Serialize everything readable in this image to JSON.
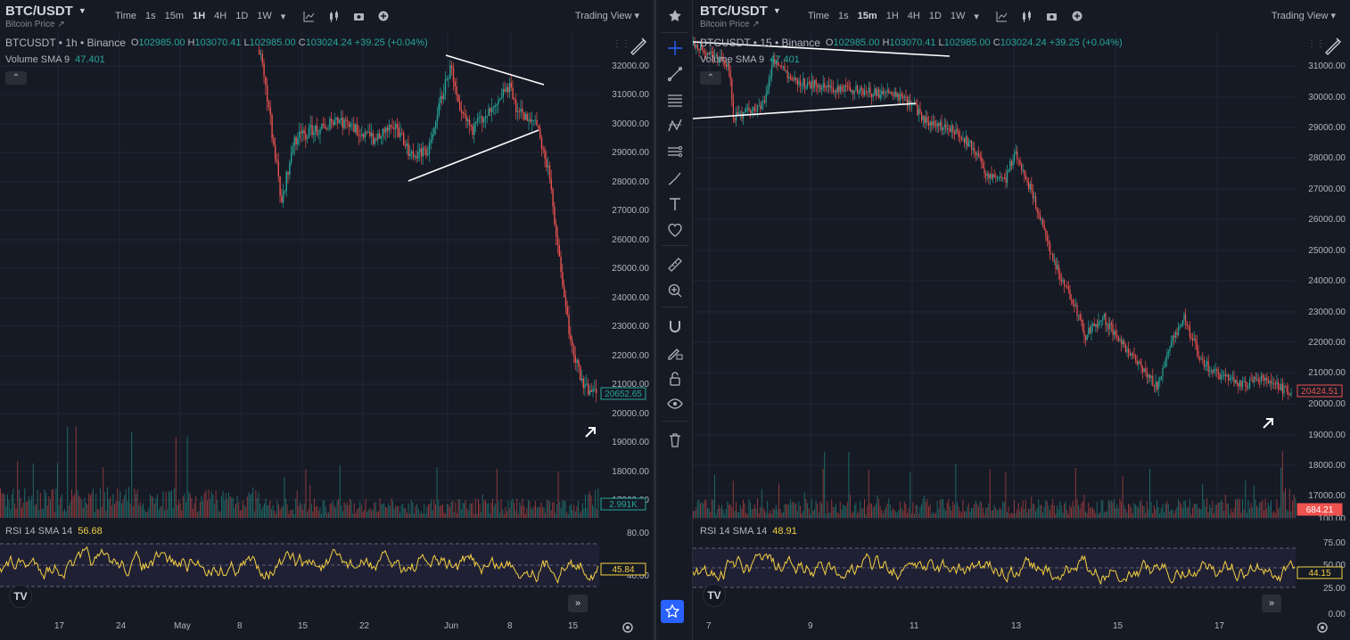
{
  "left": {
    "symbol": "BTC/USDT",
    "subtitle": "Bitcoin Price ↗",
    "timeframes": [
      "Time",
      "1s",
      "15m",
      "1H",
      "4H",
      "1D",
      "1W"
    ],
    "active_timeframe": "1H",
    "trading_view": "Trading View ▾",
    "legend_title": "BTCUSDT • 1h • Binance",
    "open": "102985.00",
    "high": "103070.41",
    "low": "102985.00",
    "close": "103024.24",
    "change": "+39.25 (+0.04%)",
    "volume_label": "Volume SMA 9",
    "volume_value": "47.401",
    "rsi_label": "RSI 14 SMA 14",
    "rsi_value": "56.68",
    "price_labels": [
      "32000.00",
      "31000.00",
      "30000.00",
      "29000.00",
      "28000.00",
      "27000.00",
      "26000.00",
      "25000.00",
      "24000.00",
      "23000.00",
      "22000.00",
      "21000.00",
      "20000.00",
      "19000.00",
      "18000.00",
      "17000.00"
    ],
    "last_price": "20652.65",
    "volume_badge": "2.991K",
    "rsi_labels": [
      "80.00",
      "40.00"
    ],
    "rsi_badge": "45.84",
    "x_labels": [
      "17",
      "24",
      "May",
      "8",
      "15",
      "22",
      "Jun",
      "8",
      "15"
    ]
  },
  "right": {
    "symbol": "BTC/USDT",
    "subtitle": "Bitcoin Price ↗",
    "timeframes": [
      "Time",
      "1s",
      "15m",
      "1H",
      "4H",
      "1D",
      "1W"
    ],
    "active_timeframe": "15m",
    "trading_view": "Trading View ▾",
    "legend_title": "BTCUSDT • 15 • Binance",
    "open": "102985.00",
    "high": "103070.41",
    "low": "102985.00",
    "close": "103024.24",
    "change": "+39.25 (+0.04%)",
    "volume_label": "Volume SMA 9",
    "volume_value": "47.401",
    "rsi_label": "RSI 14 SMA 14",
    "rsi_value": "48.91",
    "price_labels": [
      "31000.00",
      "30000.00",
      "29000.00",
      "28000.00",
      "27000.00",
      "26000.00",
      "25000.00",
      "24000.00",
      "23000.00",
      "22000.00",
      "21000.00",
      "20000.00",
      "19000.00",
      "18000.00",
      "17000.00",
      "100.00"
    ],
    "last_price": "20424.51",
    "volume_badge": "684.21",
    "rsi_labels": [
      "75.00",
      "50.00",
      "25.00",
      "0.00"
    ],
    "rsi_badge": "44.15",
    "x_labels": [
      "7",
      "9",
      "11",
      "13",
      "15",
      "17"
    ]
  },
  "colors": {
    "up": "#26a69a",
    "down": "#ef5350",
    "rsi": "#f5d142",
    "background": "#161a25",
    "accent": "#2962ff"
  },
  "sidebar_icons": [
    "crosshair-icon",
    "trend-line-icon",
    "fib-icon",
    "pattern-icon",
    "prediction-icon",
    "brush-icon",
    "text-icon",
    "heart-icon",
    "ruler-icon",
    "zoom-in-icon",
    "magnet-icon",
    "lock-pencil-icon",
    "lock-icon",
    "eye-icon",
    "trash-icon"
  ]
}
